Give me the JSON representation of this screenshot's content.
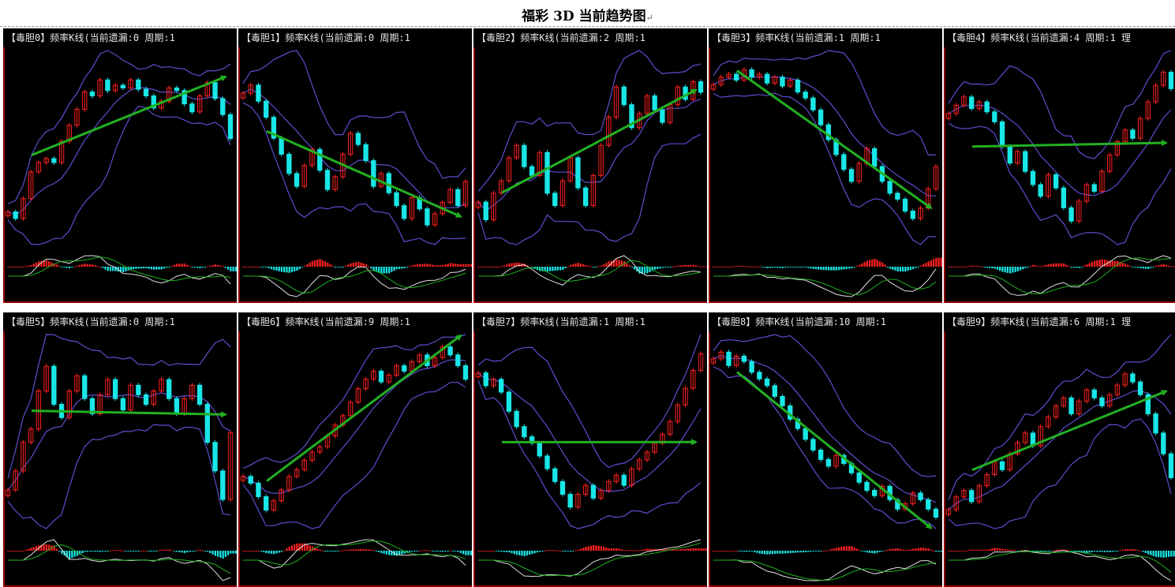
{
  "page": {
    "title": "福彩 3D 当前趋势图",
    "para_mark": "↵"
  },
  "colors": {
    "up": "#ff2020",
    "down": "#19e6e6",
    "band": "#5a4fd0",
    "arrow": "#22b022",
    "signal_white": "#e0e0e0",
    "signal_green": "#20b020",
    "axis": "#c00000"
  },
  "chart_data": [
    {
      "type": "candlestick",
      "title": "【毒胆0】频率K线(当前遗漏:0 周期:1",
      "close": [
        25,
        20,
        35,
        55,
        62,
        65,
        62,
        78,
        90,
        102,
        115,
        112,
        124,
        116,
        120,
        118,
        124,
        117,
        112,
        103,
        108,
        118,
        116,
        106,
        100,
        112,
        122,
        110,
        98,
        80
      ]
    },
    {
      "type": "candlestick",
      "title": "【毒胆1】频率K线(当前遗漏:0 周期:1",
      "close": [
        100,
        105,
        95,
        85,
        72,
        62,
        50,
        42,
        55,
        65,
        52,
        40,
        48,
        62,
        75,
        68,
        58,
        42,
        50,
        38,
        30,
        22,
        35,
        28,
        18,
        25,
        32,
        40,
        30,
        45
      ]
    },
    {
      "type": "candlestick",
      "title": "【毒胆2】频率K线(当前遗漏:2 周期:1",
      "close": [
        40,
        30,
        45,
        52,
        65,
        72,
        60,
        55,
        68,
        45,
        38,
        52,
        65,
        48,
        38,
        55,
        72,
        88,
        105,
        95,
        82,
        90,
        100,
        92,
        85,
        95,
        105,
        98,
        108,
        102
      ]
    },
    {
      "type": "candlestick",
      "title": "【毒胆3】频率K线(当前遗漏:1 周期:1",
      "close": [
        105,
        110,
        112,
        108,
        115,
        110,
        112,
        106,
        110,
        104,
        108,
        100,
        96,
        88,
        78,
        68,
        58,
        48,
        40,
        52,
        62,
        50,
        40,
        32,
        28,
        20,
        15,
        22,
        35,
        50
      ]
    },
    {
      "type": "candlestick",
      "title": "【毒胆4】频率K线(当前遗漏:4 周期:1 理",
      "close": [
        85,
        90,
        95,
        88,
        92,
        86,
        80,
        65,
        55,
        62,
        50,
        42,
        35,
        48,
        40,
        28,
        20,
        32,
        42,
        38,
        50,
        60,
        68,
        75,
        70,
        82,
        92,
        102,
        110,
        100
      ]
    },
    {
      "type": "candlestick",
      "title": "【毒胆5】频率K线(当前遗漏:0 周期:1",
      "close": [
        30,
        40,
        55,
        62,
        82,
        95,
        75,
        68,
        82,
        90,
        78,
        70,
        80,
        88,
        78,
        72,
        85,
        80,
        75,
        82,
        88,
        78,
        70,
        78,
        85,
        75,
        55,
        40,
        25,
        60
      ]
    },
    {
      "type": "candlestick",
      "title": "【毒胆6】频率K线(当前遗漏:9 周期:1",
      "close": [
        40,
        35,
        25,
        15,
        22,
        30,
        40,
        45,
        52,
        58,
        62,
        70,
        78,
        85,
        95,
        105,
        112,
        118,
        110,
        115,
        122,
        118,
        125,
        130,
        122,
        128,
        136,
        130,
        122,
        112
      ]
    },
    {
      "type": "candlestick",
      "title": "【毒胆7】频率K线(当前遗漏:1 周期:1",
      "close": [
        110,
        100,
        105,
        95,
        80,
        68,
        60,
        55,
        45,
        35,
        25,
        15,
        5,
        15,
        22,
        12,
        18,
        25,
        30,
        22,
        35,
        42,
        48,
        55,
        62,
        72,
        85,
        98,
        112,
        125
      ]
    },
    {
      "type": "candlestick",
      "title": "【毒胆8】频率K线(当前遗漏:10 周期:1",
      "close": [
        120,
        125,
        115,
        122,
        118,
        110,
        105,
        100,
        92,
        85,
        75,
        68,
        60,
        52,
        45,
        40,
        48,
        42,
        35,
        28,
        22,
        18,
        25,
        15,
        8,
        12,
        20,
        15,
        8,
        2
      ]
    },
    {
      "type": "candlestick",
      "title": "【毒胆9】频率K线(当前遗漏:6 周期:1 理",
      "close": [
        40,
        48,
        52,
        45,
        55,
        62,
        70,
        65,
        75,
        82,
        88,
        80,
        92,
        98,
        105,
        110,
        100,
        108,
        115,
        110,
        105,
        112,
        118,
        125,
        120,
        112,
        100,
        88,
        75,
        60
      ]
    }
  ]
}
